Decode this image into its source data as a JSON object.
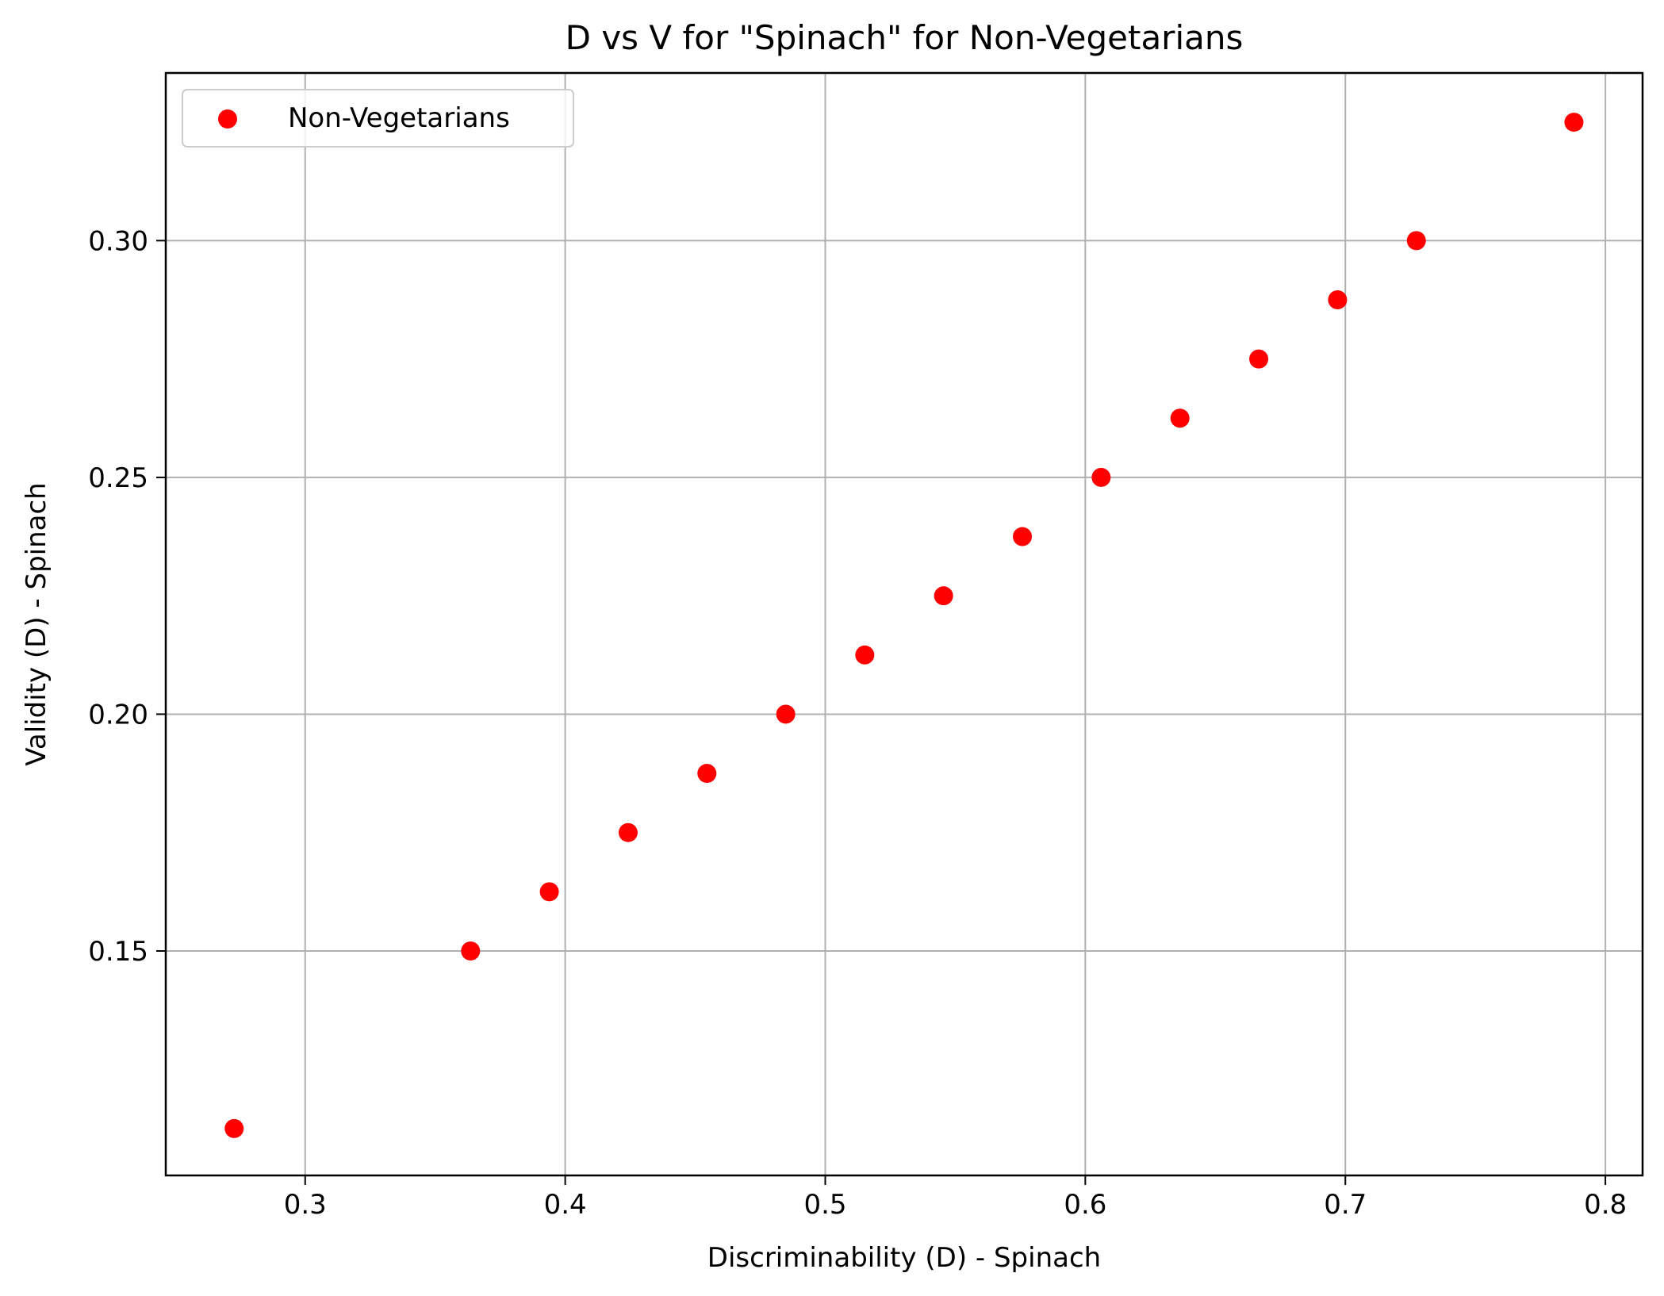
{
  "chart_data": {
    "type": "scatter",
    "title": "D vs V for \"Spinach\" for Non-Vegetarians",
    "xlabel": "Discriminability (D) - Spinach",
    "ylabel": "Validity (D) - Spinach",
    "xlim": [
      0.2464,
      0.8143
    ],
    "ylim": [
      0.1026,
      0.3354
    ],
    "xticks": [
      {
        "value": 0.3,
        "label": "0.3"
      },
      {
        "value": 0.4,
        "label": "0.4"
      },
      {
        "value": 0.5,
        "label": "0.5"
      },
      {
        "value": 0.6,
        "label": "0.6"
      },
      {
        "value": 0.7,
        "label": "0.7"
      },
      {
        "value": 0.8,
        "label": "0.8"
      }
    ],
    "yticks": [
      {
        "value": 0.15,
        "label": "0.15"
      },
      {
        "value": 0.2,
        "label": "0.20"
      },
      {
        "value": 0.25,
        "label": "0.25"
      },
      {
        "value": 0.3,
        "label": "0.30"
      }
    ],
    "grid": true,
    "legend_position": "top-left",
    "series": [
      {
        "name": "Non-Vegetarians",
        "color": "#ff0000",
        "points": [
          {
            "x": 0.2727,
            "y": 0.1125
          },
          {
            "x": 0.3636,
            "y": 0.15
          },
          {
            "x": 0.3939,
            "y": 0.1625
          },
          {
            "x": 0.4242,
            "y": 0.175
          },
          {
            "x": 0.4545,
            "y": 0.1875
          },
          {
            "x": 0.4848,
            "y": 0.2
          },
          {
            "x": 0.5152,
            "y": 0.2125
          },
          {
            "x": 0.5455,
            "y": 0.225
          },
          {
            "x": 0.5758,
            "y": 0.2375
          },
          {
            "x": 0.6061,
            "y": 0.25
          },
          {
            "x": 0.6364,
            "y": 0.2625
          },
          {
            "x": 0.6667,
            "y": 0.275
          },
          {
            "x": 0.697,
            "y": 0.2875
          },
          {
            "x": 0.7273,
            "y": 0.3
          },
          {
            "x": 0.7879,
            "y": 0.325
          }
        ]
      }
    ]
  }
}
